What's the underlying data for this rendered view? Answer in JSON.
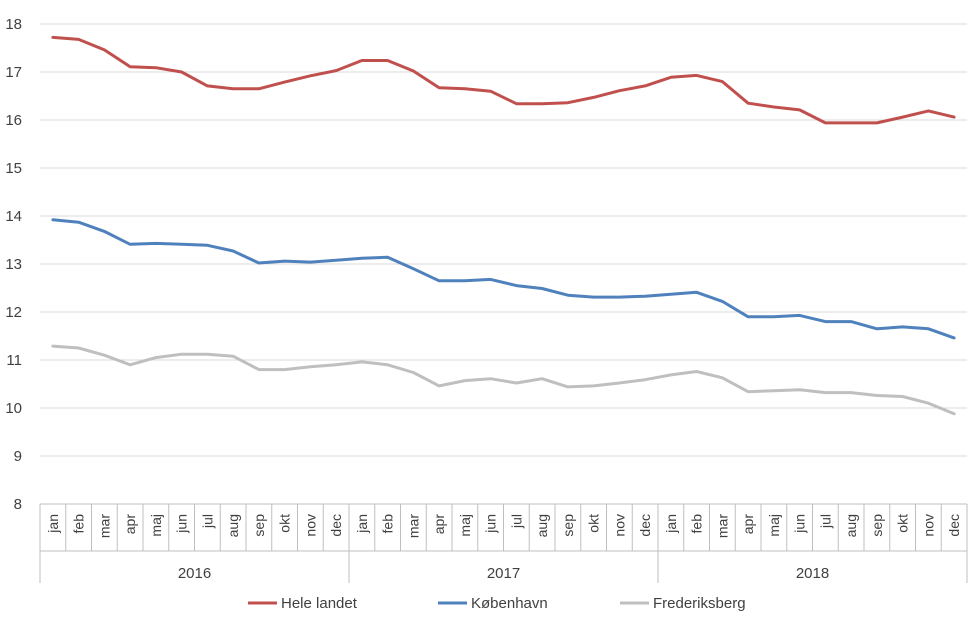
{
  "chart_data": {
    "type": "line",
    "title": "",
    "xlabel": "",
    "ylabel": "",
    "ylim": [
      8,
      18
    ],
    "yticks": [
      8,
      9,
      10,
      11,
      12,
      13,
      14,
      15,
      16,
      17,
      18
    ],
    "grid": true,
    "legend_position": "bottom",
    "categories": [
      "jan",
      "feb",
      "mar",
      "apr",
      "maj",
      "jun",
      "jul",
      "aug",
      "sep",
      "okt",
      "nov",
      "dec",
      "jan",
      "feb",
      "mar",
      "apr",
      "maj",
      "jun",
      "jul",
      "aug",
      "sep",
      "okt",
      "nov",
      "dec",
      "jan",
      "feb",
      "mar",
      "apr",
      "maj",
      "jun",
      "jul",
      "aug",
      "sep",
      "okt",
      "nov",
      "dec"
    ],
    "years": [
      "2016",
      "2017",
      "2018"
    ],
    "series": [
      {
        "name": "Hele landet",
        "color": "#c0504d",
        "values": [
          17.72,
          17.68,
          17.46,
          17.11,
          17.09,
          17.0,
          16.71,
          16.65,
          16.65,
          16.79,
          16.92,
          17.03,
          17.24,
          17.24,
          17.02,
          16.67,
          16.65,
          16.6,
          16.34,
          16.34,
          16.36,
          16.47,
          16.61,
          16.71,
          16.89,
          16.93,
          16.8,
          16.35,
          16.27,
          16.21,
          15.94,
          15.94,
          15.94,
          16.06,
          16.19,
          16.06
        ]
      },
      {
        "name": "København",
        "color": "#4f81bd",
        "values": [
          13.92,
          13.87,
          13.68,
          13.41,
          13.43,
          13.41,
          13.39,
          13.27,
          13.02,
          13.06,
          13.04,
          13.08,
          13.12,
          13.14,
          12.9,
          12.65,
          12.65,
          12.68,
          12.55,
          12.49,
          12.35,
          12.31,
          12.31,
          12.33,
          12.37,
          12.41,
          12.22,
          11.9,
          11.9,
          11.93,
          11.8,
          11.8,
          11.65,
          11.69,
          11.65,
          11.46
        ]
      },
      {
        "name": "Frederiksberg",
        "color": "#bfbfbf",
        "values": [
          11.29,
          11.25,
          11.1,
          10.9,
          11.05,
          11.12,
          11.12,
          11.08,
          10.8,
          10.8,
          10.86,
          10.9,
          10.96,
          10.9,
          10.74,
          10.46,
          10.57,
          10.61,
          10.52,
          10.61,
          10.44,
          10.46,
          10.52,
          10.59,
          10.69,
          10.76,
          10.63,
          10.34,
          10.36,
          10.38,
          10.32,
          10.32,
          10.26,
          10.24,
          10.1,
          9.88
        ]
      }
    ]
  }
}
